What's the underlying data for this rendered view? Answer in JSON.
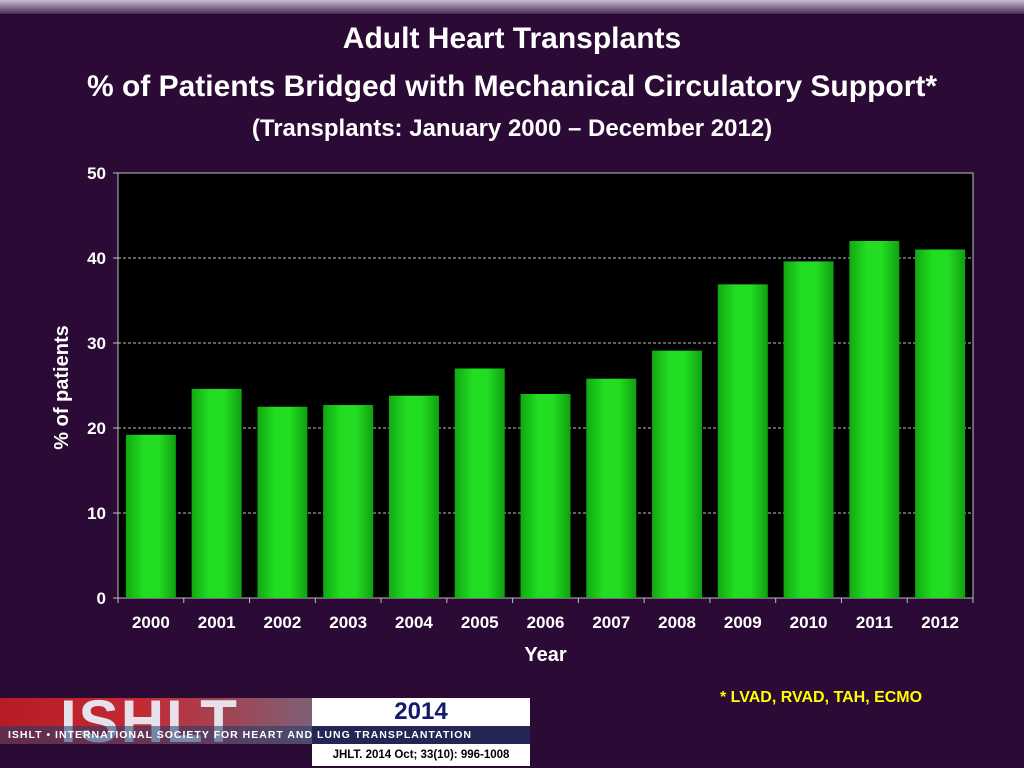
{
  "header": {
    "title": "Adult Heart Transplants",
    "subtitle": "% of Patients Bridged with Mechanical Circulatory Support*",
    "subtitle2": "(Transplants: January 2000 – December 2012)"
  },
  "chart_data": {
    "type": "bar",
    "categories": [
      "2000",
      "2001",
      "2002",
      "2003",
      "2004",
      "2005",
      "2006",
      "2007",
      "2008",
      "2009",
      "2010",
      "2011",
      "2012"
    ],
    "values": [
      19.2,
      24.6,
      22.5,
      22.7,
      23.8,
      27.0,
      24.0,
      25.8,
      29.1,
      36.9,
      39.6,
      42.0,
      41.0
    ],
    "xlabel": "Year",
    "ylabel": "% of patients",
    "ylim": [
      0,
      50
    ],
    "yticks": [
      0,
      10,
      20,
      30,
      40,
      50
    ],
    "grid": true,
    "legend": "none",
    "bar_color": "#22dd22"
  },
  "footnote": "* LVAD, RVAD, TAH, ECMO",
  "footer": {
    "logo": "ISHLT",
    "year": "2014",
    "org": "ISHLT • INTERNATIONAL SOCIETY FOR HEART AND LUNG TRANSPLANTATION",
    "citation": "JHLT. 2014 Oct; 33(10): 996-1008"
  }
}
